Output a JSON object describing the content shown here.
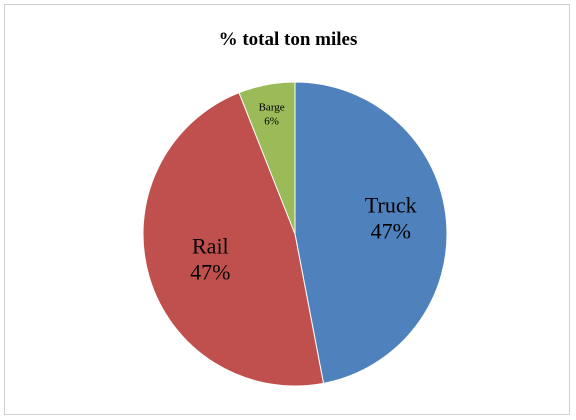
{
  "chart_data": {
    "type": "pie",
    "title": "% total ton miles",
    "slices": [
      {
        "label": "Truck",
        "value": 47,
        "display": "47%",
        "color": "#4f81bd"
      },
      {
        "label": "Rail",
        "value": 47,
        "display": "47%",
        "color": "#c0504d"
      },
      {
        "label": "Barge",
        "value": 6,
        "display": "6%",
        "color": "#9bbb59"
      }
    ],
    "start_angle_deg": 0,
    "direction": "clockwise",
    "legend": "none",
    "data_labels": "inside"
  }
}
